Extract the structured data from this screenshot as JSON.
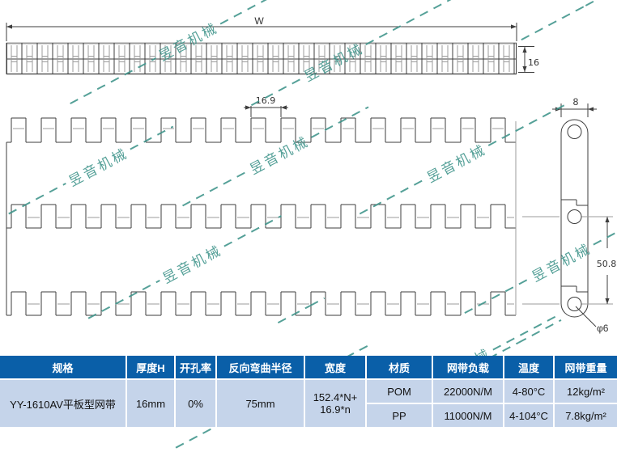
{
  "watermark": {
    "text": "昱音机械"
  },
  "colors": {
    "table_header_bg": "#0a5fa8",
    "table_row_bg": "#c5d4ea",
    "watermark": "#3e948a"
  },
  "drawing": {
    "labels": {
      "width": "W",
      "thickness": "16",
      "pitch": "16.9",
      "link_width": "8",
      "link_pitch": "50.8",
      "hole_diameter": "φ6"
    }
  },
  "table": {
    "headers": [
      "规格",
      "厚度H",
      "开孔率",
      "反向弯曲半径",
      "宽度",
      "材质",
      "网带负载",
      "温度",
      "网带重量"
    ],
    "spec": {
      "model": "YY-1610AV平板型网带",
      "thickness": "16mm",
      "open_rate": "0%",
      "reverse_bend_radius": "75mm",
      "width_line1": "152.4*N+",
      "width_line2": "16.9*n"
    },
    "materials": [
      {
        "material": "POM",
        "load": "22000N/M",
        "temperature": "4-80°C",
        "weight": "12kg/m²"
      },
      {
        "material": "PP",
        "load": "11000N/M",
        "temperature": "4-104°C",
        "weight": "7.8kg/m²"
      }
    ]
  }
}
